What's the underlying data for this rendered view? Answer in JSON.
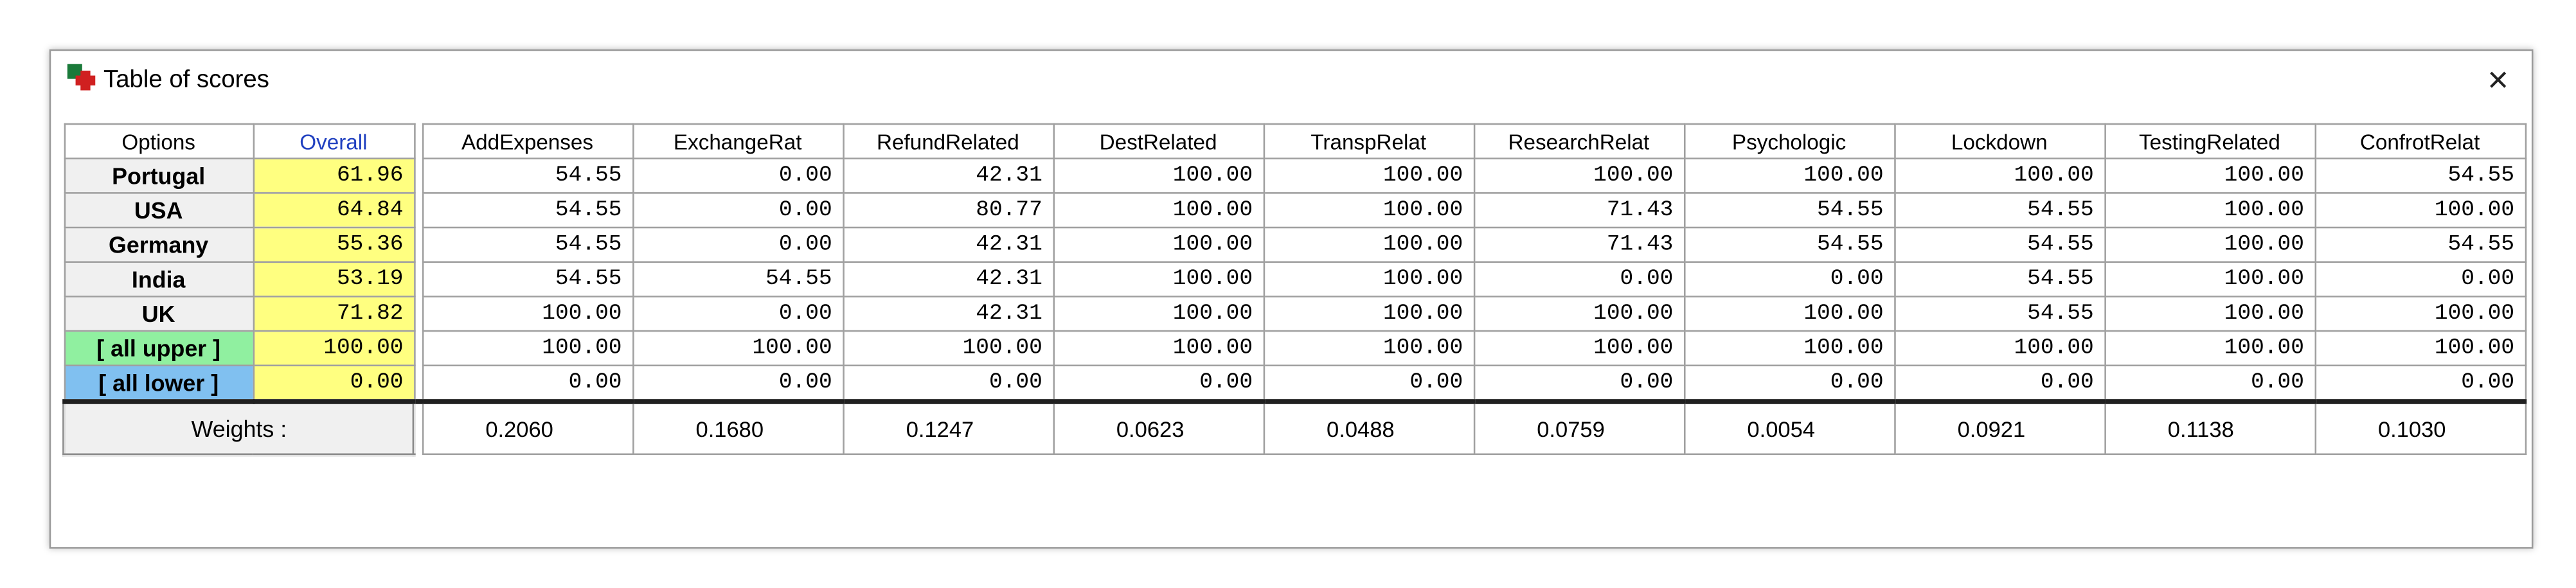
{
  "header": {
    "title": "Table of scores",
    "close": "×"
  },
  "table": {
    "columns": [
      "Options",
      "Overall",
      "AddExpenses",
      "ExchangeRat",
      "RefundRelated",
      "DestRelated",
      "TranspRelat",
      "ResearchRelat",
      "Psychologic",
      "Lockdown",
      "TestingRelated",
      "ConfrotRelat"
    ],
    "rows": [
      {
        "label": "Portugal",
        "values": [
          "61.96",
          "54.55",
          "0.00",
          "42.31",
          "100.00",
          "100.00",
          "100.00",
          "100.00",
          "100.00",
          "100.00",
          "54.55"
        ]
      },
      {
        "label": "USA",
        "values": [
          "64.84",
          "54.55",
          "0.00",
          "80.77",
          "100.00",
          "100.00",
          "71.43",
          "54.55",
          "54.55",
          "100.00",
          "100.00"
        ]
      },
      {
        "label": "Germany",
        "values": [
          "55.36",
          "54.55",
          "0.00",
          "42.31",
          "100.00",
          "100.00",
          "71.43",
          "54.55",
          "54.55",
          "100.00",
          "54.55"
        ]
      },
      {
        "label": "India",
        "values": [
          "53.19",
          "54.55",
          "54.55",
          "42.31",
          "100.00",
          "100.00",
          "0.00",
          "0.00",
          "54.55",
          "100.00",
          "0.00"
        ]
      },
      {
        "label": "UK",
        "values": [
          "71.82",
          "100.00",
          "0.00",
          "42.31",
          "100.00",
          "100.00",
          "100.00",
          "100.00",
          "54.55",
          "100.00",
          "100.00"
        ]
      },
      {
        "label": "[ all upper ]",
        "values": [
          "100.00",
          "100.00",
          "100.00",
          "100.00",
          "100.00",
          "100.00",
          "100.00",
          "100.00",
          "100.00",
          "100.00",
          "100.00"
        ]
      },
      {
        "label": "[ all lower ]",
        "values": [
          "0.00",
          "0.00",
          "0.00",
          "0.00",
          "0.00",
          "0.00",
          "0.00",
          "0.00",
          "0.00",
          "0.00",
          "0.00"
        ]
      }
    ],
    "weights": {
      "label": "Weights :",
      "values": [
        "0.2060",
        "0.1680",
        "0.1247",
        "0.0623",
        "0.0488",
        "0.0759",
        "0.0054",
        "0.0921",
        "0.1138",
        "0.1030"
      ]
    }
  }
}
